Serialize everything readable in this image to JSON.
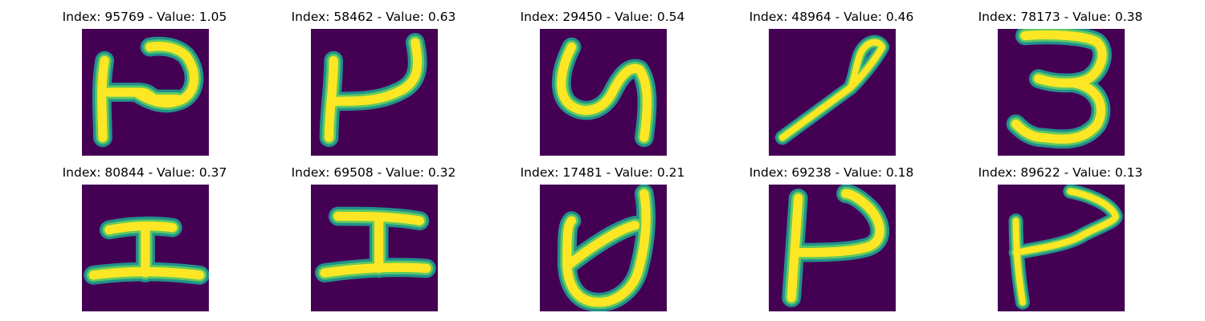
{
  "colors": {
    "background": "#440154",
    "stroke_edge": "#21918c",
    "stroke_mid": "#5ec962",
    "stroke_core": "#fde725"
  },
  "panels": [
    {
      "index": "95769",
      "value": "1.05",
      "title": "Index: 95769 - Value: 1.05",
      "glyph": "glyph-r-with-bar"
    },
    {
      "index": "58462",
      "value": "0.63",
      "title": "Index: 58462 - Value: 0.63",
      "glyph": "glyph-open-bracket"
    },
    {
      "index": "29450",
      "value": "0.54",
      "title": "Index: 29450 - Value: 0.54",
      "glyph": "glyph-y"
    },
    {
      "index": "48964",
      "value": "0.46",
      "title": "Index: 48964 - Value: 0.46",
      "glyph": "glyph-loop-slash"
    },
    {
      "index": "78173",
      "value": "0.38",
      "title": "Index: 78173 - Value: 0.38",
      "glyph": "glyph-three"
    },
    {
      "index": "80844",
      "value": "0.37",
      "title": "Index: 80844 - Value: 0.37",
      "glyph": "glyph-i-beam"
    },
    {
      "index": "69508",
      "value": "0.32",
      "title": "Index: 69508 - Value: 0.32",
      "glyph": "glyph-i-beam"
    },
    {
      "index": "17481",
      "value": "0.21",
      "title": "Index: 17481 - Value: 0.21",
      "glyph": "glyph-d-loop"
    },
    {
      "index": "69238",
      "value": "0.18",
      "title": "Index: 69238 - Value: 0.18",
      "glyph": "glyph-p-open"
    },
    {
      "index": "89622",
      "value": "0.13",
      "title": "Index: 89622 - Value: 0.13",
      "glyph": "glyph-p-open"
    }
  ]
}
